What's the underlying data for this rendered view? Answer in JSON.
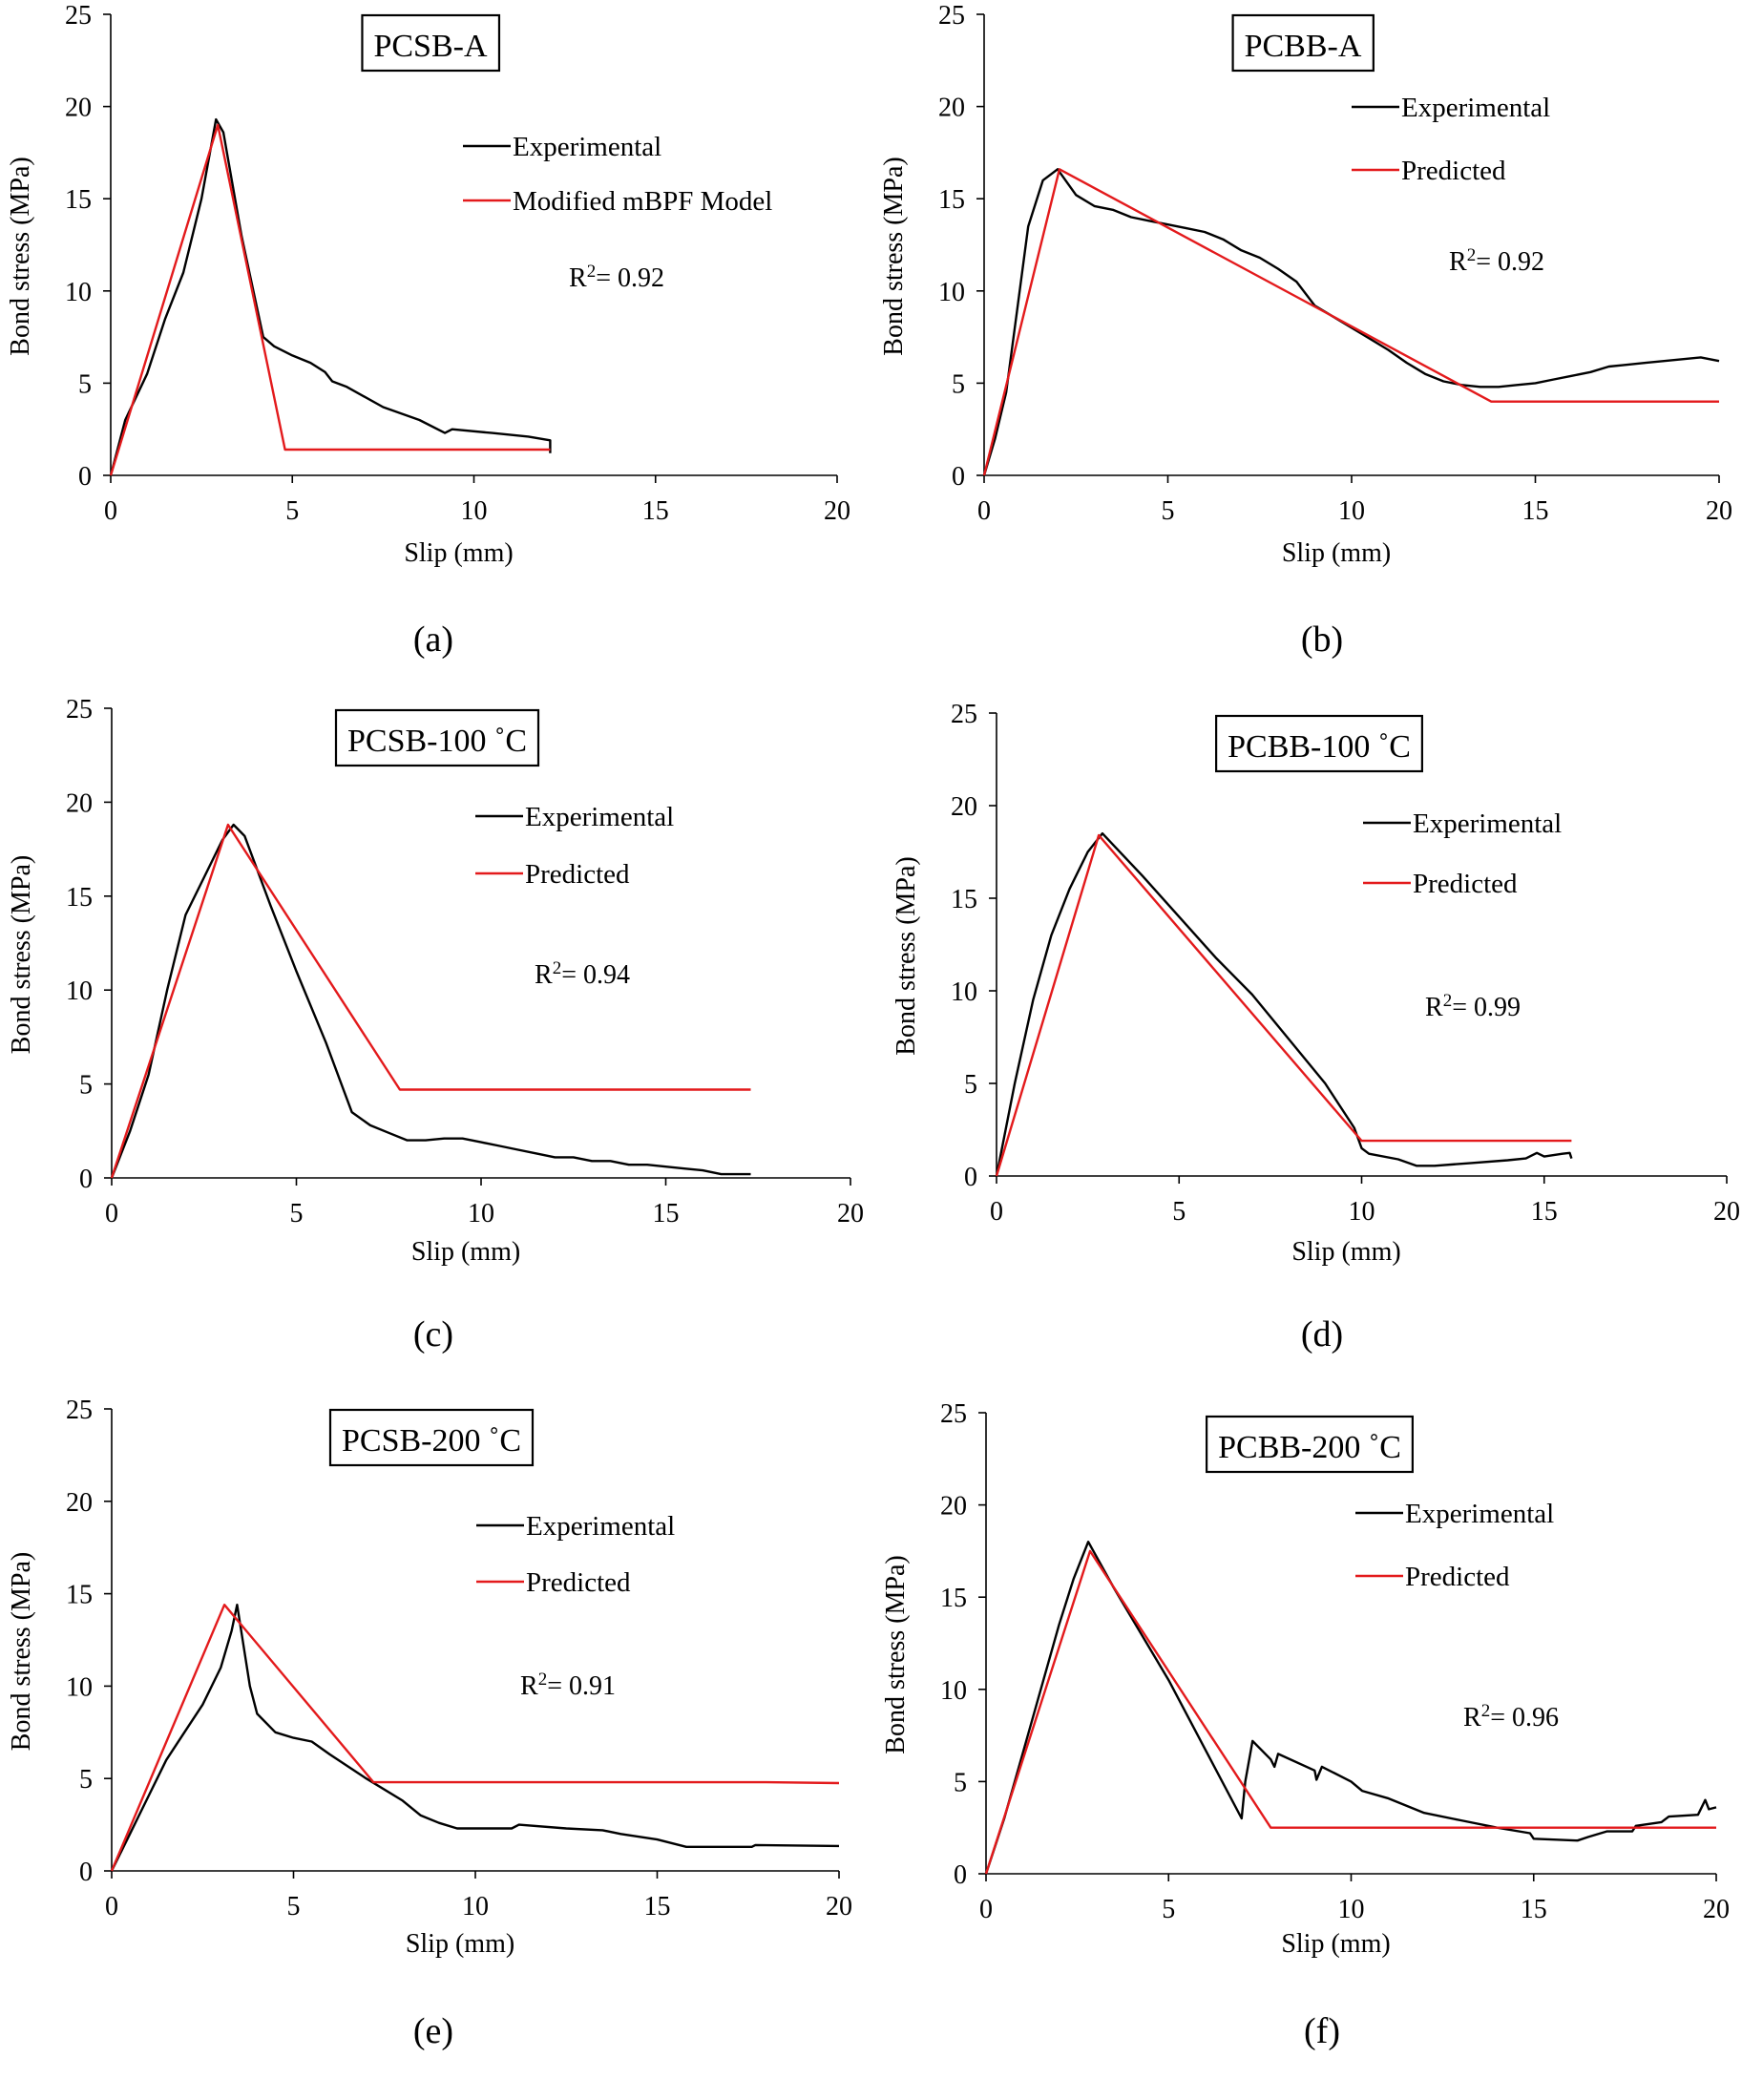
{
  "figure": {
    "caption_fragment": ""
  },
  "chart_data": [
    {
      "type": "line",
      "panel_label": "(a)",
      "title": "PCSB-A",
      "xlabel": "Slip (mm)",
      "ylabel": "Bond stress (MPa)",
      "xlim": [
        0,
        20
      ],
      "ylim": [
        0,
        25
      ],
      "xticks": [
        0,
        5,
        10,
        15,
        20
      ],
      "yticks": [
        0,
        5,
        10,
        15,
        20,
        25
      ],
      "grid": false,
      "legend_position": "top-right",
      "annotation": {
        "text_prefix": "R",
        "superscript": "2",
        "text_suffix": "= 0.92"
      },
      "series": [
        {
          "name": "Experimental",
          "color": "#000000",
          "x": [
            0,
            0.4,
            1,
            1.5,
            2,
            2.5,
            2.9,
            3.1,
            3.6,
            4.2,
            4.5,
            5,
            5.5,
            5.9,
            6.1,
            6.5,
            7.5,
            8.5,
            9.2,
            9.4,
            10.5,
            11.5,
            12.1,
            12.1
          ],
          "y": [
            0,
            3,
            5.5,
            8.5,
            11,
            15,
            19.3,
            18.6,
            13,
            7.5,
            7,
            6.5,
            6.1,
            5.6,
            5.1,
            4.8,
            3.7,
            3,
            2.3,
            2.5,
            2.3,
            2.1,
            1.9,
            1.2
          ]
        },
        {
          "name": "Modified mBPF Model",
          "color": "#e31a1c",
          "x": [
            0,
            2.95,
            4.8,
            12.1
          ],
          "y": [
            0,
            19.0,
            1.4,
            1.4
          ]
        }
      ]
    },
    {
      "type": "line",
      "panel_label": "(b)",
      "title": "PCBB-A",
      "xlabel": "Slip (mm)",
      "ylabel": "Bond stress (MPa)",
      "xlim": [
        0,
        20
      ],
      "ylim": [
        0,
        25
      ],
      "xticks": [
        0,
        5,
        10,
        15,
        20
      ],
      "yticks": [
        0,
        5,
        10,
        15,
        20,
        25
      ],
      "grid": false,
      "legend_position": "top-right",
      "annotation": {
        "text_prefix": "R",
        "superscript": "2",
        "text_suffix": "= 0.92"
      },
      "series": [
        {
          "name": "Experimental",
          "color": "#000000",
          "x": [
            0,
            0.3,
            0.6,
            0.9,
            1.2,
            1.6,
            2.0,
            2.5,
            3.0,
            3.5,
            4.0,
            4.5,
            5.0,
            5.5,
            6.0,
            6.5,
            7.0,
            7.5,
            8.0,
            8.5,
            9.0,
            9.5,
            10.0,
            10.5,
            11.0,
            11.5,
            12.0,
            12.5,
            13.0,
            13.5,
            14.0,
            14.5,
            15.0,
            15.5,
            16.0,
            16.5,
            17.0,
            17.5,
            18.0,
            18.5,
            19.0,
            19.5,
            20.0
          ],
          "y": [
            0,
            2,
            4.5,
            9,
            13.5,
            16,
            16.6,
            15.2,
            14.6,
            14.4,
            14.0,
            13.8,
            13.6,
            13.4,
            13.2,
            12.8,
            12.2,
            11.8,
            11.2,
            10.5,
            9.2,
            8.6,
            8.0,
            7.4,
            6.8,
            6.1,
            5.5,
            5.1,
            4.9,
            4.8,
            4.8,
            4.9,
            5.0,
            5.2,
            5.4,
            5.6,
            5.9,
            6.0,
            6.1,
            6.2,
            6.3,
            6.4,
            6.2
          ]
        },
        {
          "name": "Predicted",
          "color": "#e31a1c",
          "x": [
            0,
            2.05,
            13.8,
            20
          ],
          "y": [
            0,
            16.6,
            4.0,
            4.0
          ]
        }
      ]
    },
    {
      "type": "line",
      "panel_label": "(c)",
      "title": "PCSB-100 ˚C",
      "xlabel": "Slip (mm)",
      "ylabel": "Bond stress (MPa)",
      "xlim": [
        0,
        20
      ],
      "ylim": [
        0,
        25
      ],
      "xticks": [
        0,
        5,
        10,
        15,
        20
      ],
      "yticks": [
        0,
        5,
        10,
        15,
        20,
        25
      ],
      "grid": false,
      "legend_position": "top-right",
      "annotation": {
        "text_prefix": "R",
        "superscript": "2",
        "text_suffix": "= 0.94"
      },
      "series": [
        {
          "name": "Experimental",
          "color": "#000000",
          "x": [
            0,
            0.5,
            1.0,
            1.5,
            2.0,
            2.5,
            3.0,
            3.3,
            3.6,
            4.3,
            5.0,
            5.8,
            6.5,
            7.0,
            7.5,
            8.0,
            8.5,
            9.0,
            9.5,
            10.0,
            10.5,
            11.0,
            11.5,
            12.0,
            12.5,
            13.0,
            13.5,
            14.0,
            14.5,
            15.0,
            15.5,
            16.0,
            16.5,
            17.3
          ],
          "y": [
            0,
            2.5,
            5.5,
            10,
            14,
            16,
            18,
            18.8,
            18.2,
            14.5,
            11,
            7.2,
            3.5,
            2.8,
            2.4,
            2.0,
            2.0,
            2.1,
            2.1,
            1.9,
            1.7,
            1.5,
            1.3,
            1.1,
            1.1,
            0.9,
            0.9,
            0.7,
            0.7,
            0.6,
            0.5,
            0.4,
            0.2,
            0.2
          ]
        },
        {
          "name": "Predicted",
          "color": "#e31a1c",
          "x": [
            0,
            3.15,
            7.8,
            17.3
          ],
          "y": [
            0,
            18.8,
            4.7,
            4.7
          ]
        }
      ]
    },
    {
      "type": "line",
      "panel_label": "(d)",
      "title": "PCBB-100 ˚C",
      "xlabel": "Slip (mm)",
      "ylabel": "Bond stress (MPa)",
      "xlim": [
        0,
        20
      ],
      "ylim": [
        0,
        25
      ],
      "xticks": [
        0,
        5,
        10,
        15,
        20
      ],
      "yticks": [
        0,
        5,
        10,
        15,
        20,
        25
      ],
      "grid": false,
      "legend_position": "top-right",
      "annotation": {
        "text_prefix": "R",
        "superscript": "2",
        "text_suffix": "= 0.99"
      },
      "series": [
        {
          "name": "Experimental",
          "color": "#000000",
          "x": [
            0,
            0.5,
            1.0,
            1.5,
            2.0,
            2.5,
            2.9,
            4.0,
            5.0,
            6.0,
            7.0,
            8.0,
            9.0,
            9.8,
            10.0,
            10.2,
            11.0,
            11.5,
            12.0,
            13.0,
            14.0,
            14.5,
            14.8,
            15.0,
            15.5,
            15.7,
            15.75
          ],
          "y": [
            0,
            5,
            9.5,
            13,
            15.5,
            17.5,
            18.5,
            16.2,
            14.0,
            11.8,
            9.8,
            7.4,
            5.0,
            2.6,
            1.5,
            1.2,
            0.9,
            0.55,
            0.55,
            0.7,
            0.85,
            0.95,
            1.25,
            1.05,
            1.2,
            1.25,
            0.95
          ]
        },
        {
          "name": "Predicted",
          "color": "#e31a1c",
          "x": [
            0,
            2.8,
            10.0,
            15.75
          ],
          "y": [
            0,
            18.4,
            1.9,
            1.9
          ]
        }
      ]
    },
    {
      "type": "line",
      "panel_label": "(e)",
      "title": "PCSB-200 ˚C",
      "xlabel": "Slip (mm)",
      "ylabel": "Bond stress (MPa)",
      "xlim": [
        0,
        20
      ],
      "ylim": [
        0,
        25
      ],
      "xticks": [
        0,
        5,
        10,
        15,
        20
      ],
      "yticks": [
        0,
        5,
        10,
        15,
        20,
        25
      ],
      "grid": false,
      "legend_position": "top-right",
      "annotation": {
        "text_prefix": "R",
        "superscript": "2",
        "text_suffix": "= 0.91"
      },
      "series": [
        {
          "name": "Experimental",
          "color": "#000000",
          "x": [
            0,
            0.5,
            1.0,
            1.5,
            2.0,
            2.5,
            3.0,
            3.3,
            3.45,
            3.6,
            3.8,
            4.0,
            4.5,
            5.0,
            5.5,
            6.0,
            7.0,
            8.0,
            8.5,
            9.0,
            9.5,
            11.0,
            11.2,
            12.5,
            13.5,
            14.0,
            15.0,
            15.8,
            17.6,
            17.7,
            20.0
          ],
          "y": [
            0,
            2,
            4,
            6,
            7.5,
            9,
            11,
            13,
            14.4,
            12.5,
            10,
            8.5,
            7.5,
            7.2,
            7.0,
            6.3,
            5.0,
            3.8,
            3.0,
            2.6,
            2.3,
            2.3,
            2.5,
            2.3,
            2.2,
            2.0,
            1.7,
            1.3,
            1.3,
            1.4,
            1.35
          ]
        },
        {
          "name": "Predicted",
          "color": "#e31a1c",
          "x": [
            0,
            3.1,
            7.2,
            18.0,
            20.0
          ],
          "y": [
            0,
            14.4,
            4.8,
            4.8,
            4.75
          ]
        }
      ]
    },
    {
      "type": "line",
      "panel_label": "(f)",
      "title": "PCBB-200 ˚C",
      "xlabel": "Slip (mm)",
      "ylabel": "Bond stress (MPa)",
      "xlim": [
        0,
        20
      ],
      "ylim": [
        0,
        25
      ],
      "xticks": [
        0,
        5,
        10,
        15,
        20
      ],
      "yticks": [
        0,
        5,
        10,
        15,
        20,
        25
      ],
      "grid": false,
      "legend_position": "top-right",
      "annotation": {
        "text_prefix": "R",
        "superscript": "2",
        "text_suffix": "= 0.96"
      },
      "series": [
        {
          "name": "Experimental",
          "color": "#000000",
          "x": [
            0,
            0.2,
            0.5,
            1.0,
            1.5,
            2.0,
            2.4,
            2.8,
            3.5,
            5.0,
            7.0,
            7.1,
            7.3,
            7.8,
            7.9,
            8.0,
            9.0,
            9.05,
            9.2,
            10.0,
            10.3,
            11.0,
            12.0,
            13.0,
            14.0,
            14.9,
            15.0,
            16.2,
            16.5,
            17.0,
            17.7,
            17.8,
            18.5,
            18.7,
            19.5,
            19.7,
            19.8,
            20.0
          ],
          "y": [
            0,
            1.2,
            3,
            6.5,
            10,
            13.5,
            16,
            18,
            15.5,
            10.5,
            3,
            5,
            7.2,
            6.2,
            5.8,
            6.5,
            5.6,
            5.1,
            5.8,
            5.0,
            4.5,
            4.1,
            3.3,
            2.9,
            2.5,
            2.2,
            1.9,
            1.8,
            2.0,
            2.3,
            2.3,
            2.6,
            2.8,
            3.1,
            3.2,
            4.0,
            3.5,
            3.6
          ]
        },
        {
          "name": "Predicted",
          "color": "#e31a1c",
          "x": [
            0,
            2.85,
            7.8,
            20.0
          ],
          "y": [
            0,
            17.5,
            2.5,
            2.5
          ]
        }
      ]
    }
  ]
}
